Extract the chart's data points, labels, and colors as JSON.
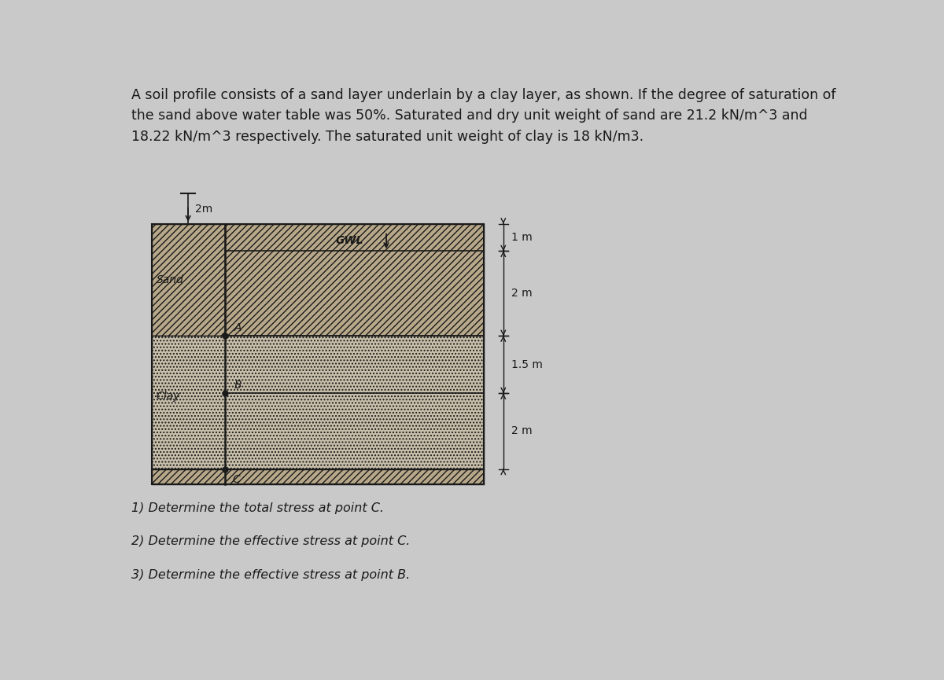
{
  "title_line1": "A soil profile consists of a sand layer underlain by a clay layer, as shown. If the degree of saturation of",
  "title_line2": "the sand above water table was 50%. Saturated and dry unit weight of sand are 21.2 kN/m^3 and",
  "title_line3": "18.22 kN/m^3 respectively. The saturated unit weight of clay is 18 kN/m3.",
  "bg_color": "#c9c9c9",
  "sand_face_color": "#b8a88a",
  "clay_face_color": "#c8bfaa",
  "bottom_face_color": "#b8a88a",
  "line_color": "#1a1a1a",
  "label_sand": "Sand",
  "label_clay": "Clay",
  "label_gwl": "GWL",
  "label_A": "A",
  "label_B": "B",
  "label_C": "C",
  "dim_2m_top": "2m",
  "dim_1m": "1 m",
  "dim_2m_mid": "2 m",
  "dim_15m": "1.5 m",
  "dim_2m_bot": "2 m",
  "q1": "1) Determine the total stress at point C.",
  "q2": "2) Determine the effective stress at point C.",
  "q3": "3) Determine the effective stress at point B.",
  "font_size_title": 12.5,
  "font_size_labels": 10,
  "font_size_dim": 10,
  "font_size_questions": 11.5
}
